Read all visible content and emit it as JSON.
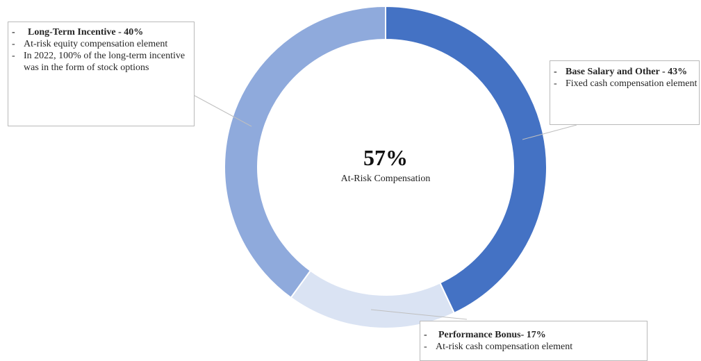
{
  "chart_data": {
    "type": "pie",
    "donut": true,
    "slices": [
      {
        "name": "Base Salary and Other",
        "value": 43,
        "color": "#4472C4"
      },
      {
        "name": "Performance Bonus",
        "value": 17,
        "color": "#DAE3F3"
      },
      {
        "name": "Long-Term Incentive",
        "value": 40,
        "color": "#8FAADC"
      }
    ],
    "center_value": "57%",
    "center_label": "At-Risk Compensation"
  },
  "callouts": {
    "long_term": {
      "title": "Long-Term Incentive - 40%",
      "lines": [
        "At-risk equity compensation element",
        "In 2022, 100% of the long-term incentive was in the form of stock options"
      ]
    },
    "base_salary": {
      "title": "Base Salary and Other - 43%",
      "lines": [
        "Fixed cash compensation element"
      ]
    },
    "performance": {
      "title": "Performance Bonus- 17%",
      "lines": [
        "At-risk cash compensation element"
      ]
    }
  }
}
